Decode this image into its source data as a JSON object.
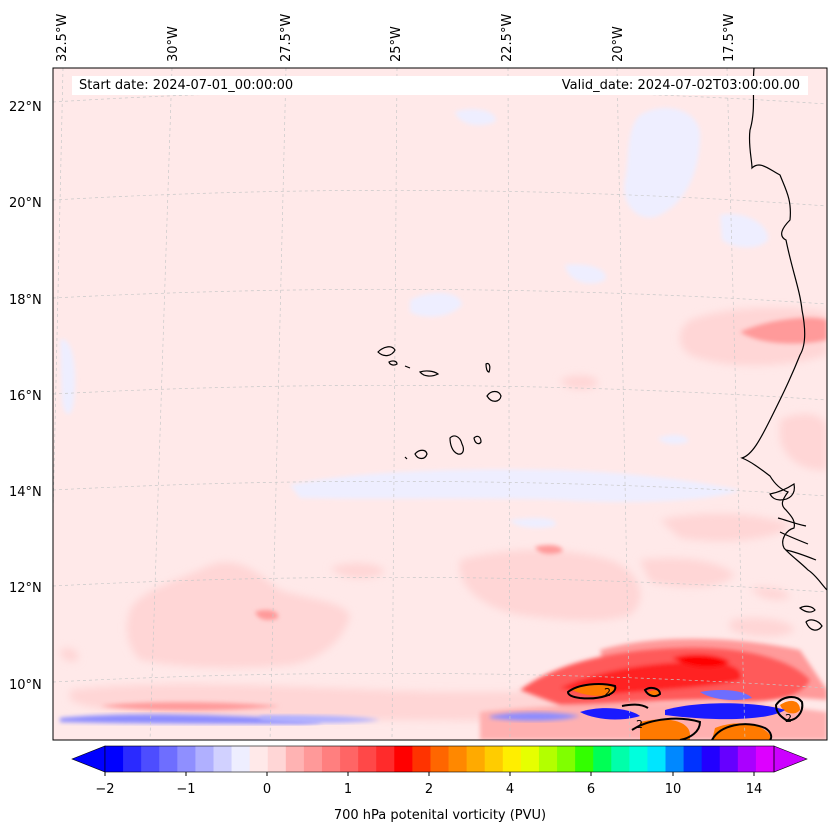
{
  "map": {
    "lon_labels": [
      "32.5°W",
      "30°W",
      "27.5°W",
      "25°W",
      "22.5°W",
      "20°W",
      "17.5°W"
    ],
    "lat_labels": [
      "22°N",
      "20°N",
      "18°N",
      "16°N",
      "14°N",
      "12°N",
      "10°N"
    ],
    "start_date": "Start date: 2024-07-01_00:00:00",
    "valid_date": "Valid_date: 2024-07-02T03:00:00.00",
    "field": "700 hPa potenital vorticity (PVU)",
    "contour_label": "2",
    "colors": {
      "land_line": "#000000",
      "background_field": "#ffe9e9",
      "positive_light": "#ffd6d6",
      "positive_mid": "#ff8a8a",
      "positive_strong": "#ff2020",
      "negative_light": "#eeeeff",
      "negative_mid": "#8c8cff",
      "negative_strong": "#1a1aff",
      "high_orange": "#ff7a00",
      "grid": "#bdbdbd"
    }
  },
  "colorbar": {
    "tick_labels": [
      "−2",
      "−1",
      "0",
      "1",
      "2",
      "4",
      "6",
      "10",
      "14"
    ],
    "colors": [
      "#0000ff",
      "#2a2aff",
      "#4d4dff",
      "#6e6eff",
      "#8f8fff",
      "#b0b0ff",
      "#d1d1ff",
      "#eeeeff",
      "#ffe9e9",
      "#ffd6d6",
      "#ffb3b3",
      "#ff9999",
      "#ff7f7f",
      "#ff6565",
      "#ff4848",
      "#ff2b2b",
      "#ff0000",
      "#ff3300",
      "#ff6600",
      "#ff8800",
      "#ffaa00",
      "#ffcc00",
      "#ffee00",
      "#e6ff00",
      "#b3ff00",
      "#80ff00",
      "#33ff00",
      "#00ff55",
      "#00ffaa",
      "#00ffdd",
      "#00e5ff",
      "#0088ff",
      "#0033ff",
      "#2200ff",
      "#6600ff",
      "#aa00ff",
      "#dd00ff"
    ],
    "extend_min_color": "#0000ff",
    "extend_max_color": "#cc00ff"
  }
}
